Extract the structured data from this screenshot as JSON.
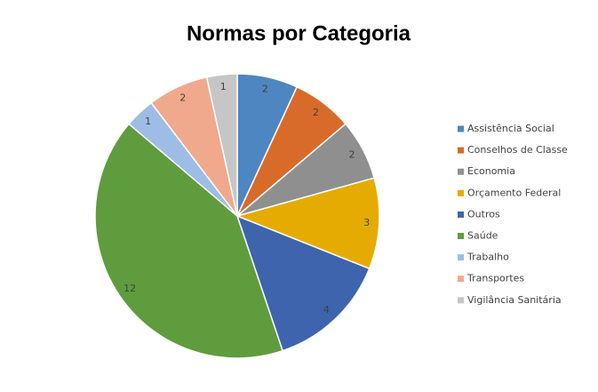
{
  "chart_data": {
    "type": "pie",
    "title": "Normas por Categoria",
    "categories": [
      "Assistência Social",
      "Conselhos de Classe",
      "Economia",
      "Orçamento Federal",
      "Outros",
      "Saúde",
      "Trabalho",
      "Transportes",
      "Vigilância Sanitária"
    ],
    "values": [
      2,
      2,
      2,
      3,
      4,
      12,
      1,
      2,
      1
    ],
    "colors": [
      "#4e86c1",
      "#d96b2a",
      "#8f8f8f",
      "#e5ab00",
      "#3d64ad",
      "#5f9c3d",
      "#9dbde6",
      "#f0a98c",
      "#c6c6c6"
    ],
    "legend": "right"
  }
}
